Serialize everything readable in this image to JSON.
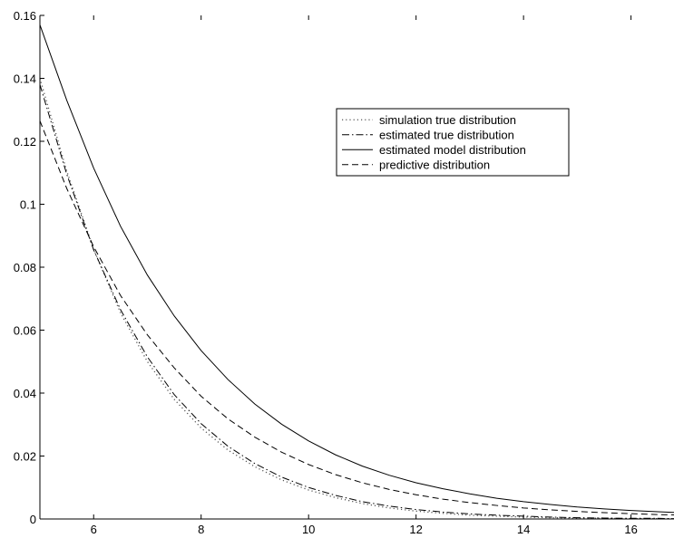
{
  "chart_data": {
    "type": "line",
    "title": "",
    "xlabel": "",
    "ylabel": "",
    "xlim": [
      5,
      16.8
    ],
    "ylim": [
      0,
      0.16
    ],
    "grid": false,
    "legend_position": "top-right",
    "x_ticks": [
      {
        "value": 6,
        "label": "6"
      },
      {
        "value": 8,
        "label": "8"
      },
      {
        "value": 10,
        "label": "10"
      },
      {
        "value": 12,
        "label": "12"
      },
      {
        "value": 14,
        "label": "14"
      },
      {
        "value": 16,
        "label": "16"
      }
    ],
    "y_ticks": [
      {
        "value": 0,
        "label": "0"
      },
      {
        "value": 0.02,
        "label": "0.02"
      },
      {
        "value": 0.04,
        "label": "0.04"
      },
      {
        "value": 0.06,
        "label": "0.06"
      },
      {
        "value": 0.08,
        "label": "0.08"
      },
      {
        "value": 0.1,
        "label": "0.1"
      },
      {
        "value": 0.12,
        "label": "0.12"
      },
      {
        "value": 0.14,
        "label": "0.14"
      },
      {
        "value": 0.16,
        "label": "0.16"
      }
    ],
    "series": [
      {
        "name": "simulation true distribution",
        "style": "dotted",
        "color": "#555555",
        "x": [
          5,
          5.5,
          6,
          6.5,
          7,
          7.5,
          8,
          8.5,
          9,
          9.5,
          10,
          10.5,
          11,
          11.5,
          12,
          12.5,
          13,
          13.5,
          14,
          14.5,
          15,
          15.5,
          16,
          16.5,
          16.8
        ],
        "y": [
          0.14,
          0.1105,
          0.0857,
          0.0655,
          0.05,
          0.038,
          0.0289,
          0.0219,
          0.0166,
          0.0124,
          0.0092,
          0.0068,
          0.0049,
          0.0035,
          0.0025,
          0.0018,
          0.0012,
          0.0009,
          0.0006,
          0.0004,
          0.0003,
          0.0002,
          0.0001,
          0.0001,
          0.0001
        ]
      },
      {
        "name": "estimated true distribution",
        "style": "dashdot",
        "color": "#000000",
        "x": [
          5,
          5.5,
          6,
          6.5,
          7,
          7.5,
          8,
          8.5,
          9,
          9.5,
          10,
          10.5,
          11,
          11.5,
          12,
          12.5,
          13,
          13.5,
          14,
          14.5,
          15,
          15.5,
          16,
          16.5,
          16.8
        ],
        "y": [
          0.138,
          0.1095,
          0.0855,
          0.0665,
          0.0515,
          0.0395,
          0.0303,
          0.0231,
          0.0176,
          0.0133,
          0.01,
          0.0075,
          0.0055,
          0.0041,
          0.003,
          0.0022,
          0.0016,
          0.0012,
          0.0009,
          0.0006,
          0.0004,
          0.0003,
          0.0002,
          0.0002,
          0.0001
        ]
      },
      {
        "name": "estimated model distribution",
        "style": "solid",
        "color": "#000000",
        "x": [
          5,
          5.5,
          6,
          6.5,
          7,
          7.5,
          8,
          8.5,
          9,
          9.5,
          10,
          10.5,
          11,
          11.5,
          12,
          12.5,
          13,
          13.5,
          14,
          14.5,
          15,
          15.5,
          16,
          16.5,
          16.8
        ],
        "y": [
          0.157,
          0.133,
          0.1115,
          0.093,
          0.0775,
          0.0645,
          0.0535,
          0.0443,
          0.0365,
          0.0301,
          0.0248,
          0.0204,
          0.0168,
          0.0139,
          0.0115,
          0.0096,
          0.008,
          0.0066,
          0.0055,
          0.0046,
          0.0038,
          0.0032,
          0.0027,
          0.0023,
          0.0021
        ]
      },
      {
        "name": "predictive distribution",
        "style": "dashed",
        "color": "#000000",
        "x": [
          5,
          5.5,
          6,
          6.5,
          7,
          7.5,
          8,
          8.5,
          9,
          9.5,
          10,
          10.5,
          11,
          11.5,
          12,
          12.5,
          13,
          13.5,
          14,
          14.5,
          15,
          15.5,
          16,
          16.5,
          16.8
        ],
        "y": [
          0.1265,
          0.105,
          0.0865,
          0.071,
          0.0585,
          0.048,
          0.039,
          0.0318,
          0.026,
          0.0212,
          0.0173,
          0.0141,
          0.0115,
          0.0094,
          0.0077,
          0.0063,
          0.0052,
          0.0043,
          0.0035,
          0.0029,
          0.0024,
          0.002,
          0.0017,
          0.0014,
          0.0013
        ]
      }
    ]
  }
}
